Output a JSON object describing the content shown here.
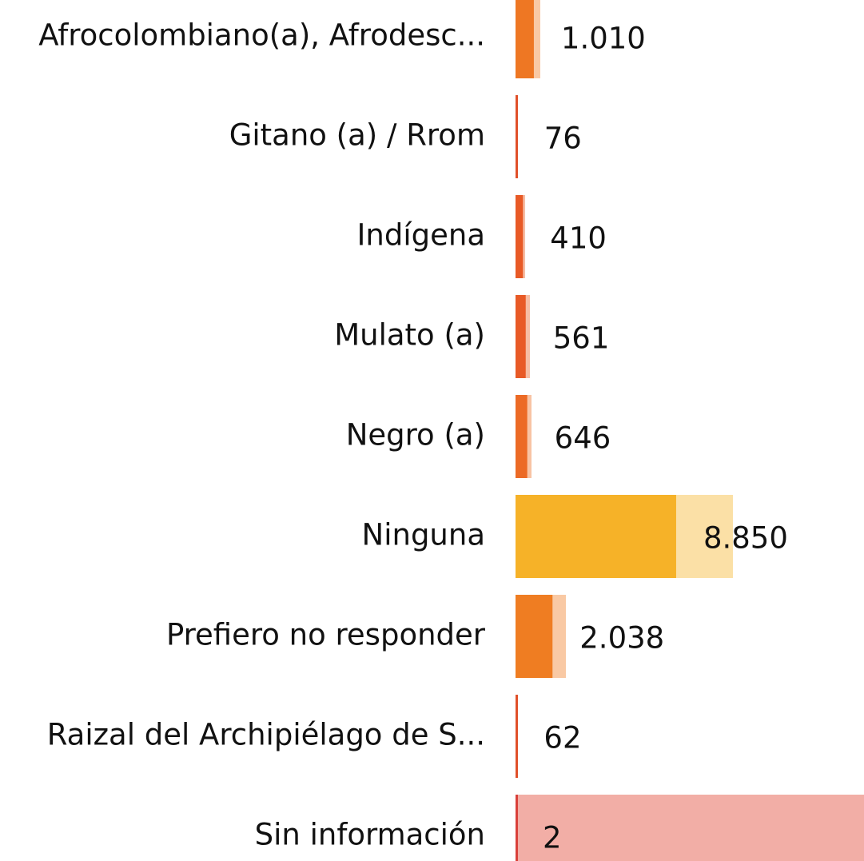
{
  "chart_data": {
    "type": "bar",
    "categories": [
      "Afrocolombiano(a), Afrodesc...",
      "Gitano (a) / Rrom",
      "Indígena",
      "Mulato (a)",
      "Negro (a)",
      "Ninguna",
      "Prefiero no responder",
      "Raizal del Archipiélago de S...",
      "Sin información"
    ],
    "series": [
      {
        "values": [
          1010,
          76,
          410,
          561,
          646,
          8850,
          2038,
          62,
          2
        ],
        "value_labels": [
          "1.010",
          "76",
          "410",
          "561",
          "646",
          "8.850",
          "2.038",
          "62",
          "2"
        ],
        "colors": [
          "#ee7723",
          "#e0502a",
          "#e85a26",
          "#e85a26",
          "#ec6a25",
          "#f6b228",
          "#ef7d22",
          "#e0502a",
          "#d9403a"
        ]
      },
      {
        "values": [
          1365,
          90,
          530,
          793,
          880,
          11980,
          2775,
          70,
          19200
        ],
        "colors": [
          "#f9c9a4",
          "#f3b5a4",
          "#f6bda4",
          "#f6bda4",
          "#f8c3a4",
          "#fbe0a6",
          "#f9c9a4",
          "#f3b5a4",
          "#f2aea6"
        ]
      }
    ],
    "xlim": [
      0,
      19200
    ]
  }
}
